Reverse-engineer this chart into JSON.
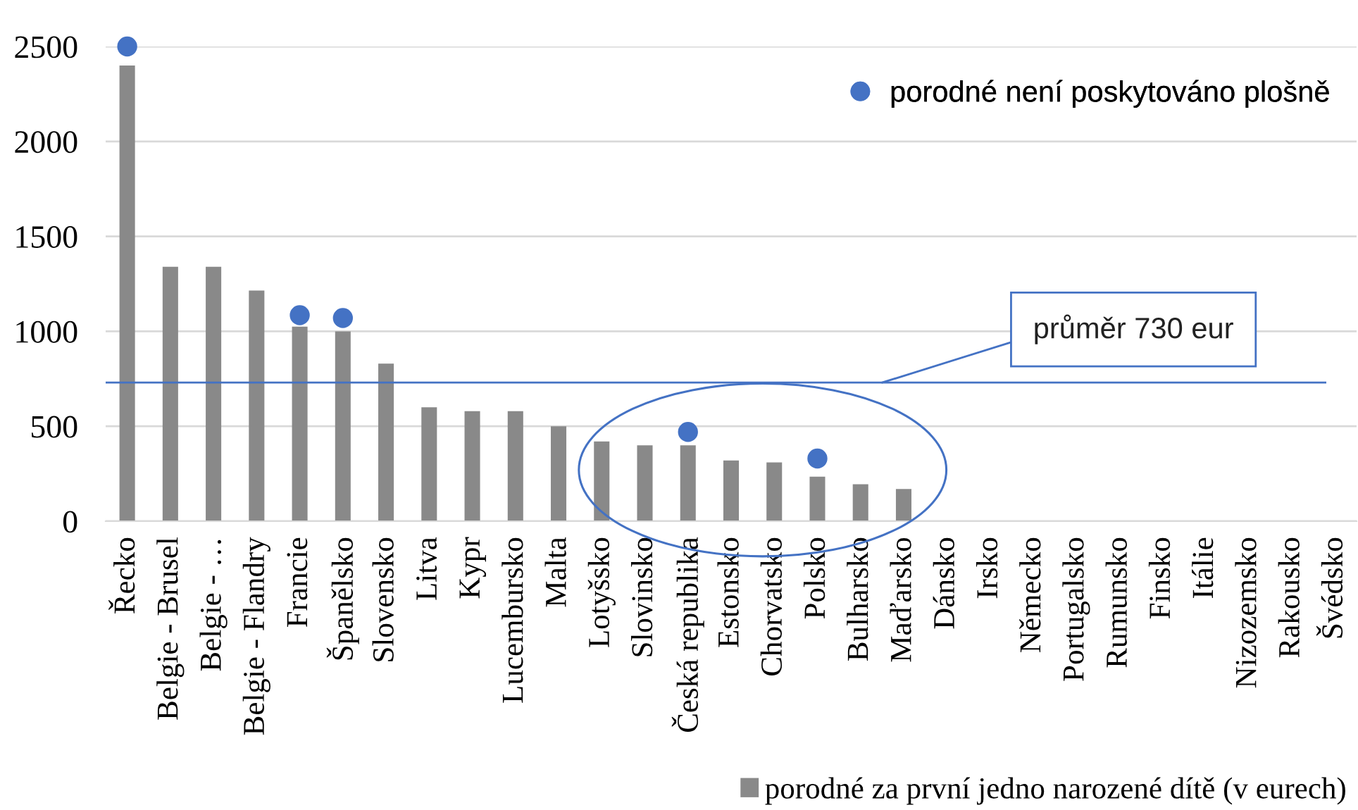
{
  "chart_data": {
    "type": "bar",
    "categories": [
      "Řecko",
      "Belgie - Brusel",
      "Belgie - …",
      "Belgie - Flandry",
      "Francie",
      "Španělsko",
      "Slovensko",
      "Litva",
      "Kypr",
      "Lucembursko",
      "Malta",
      "Lotyšsko",
      "Slovinsko",
      "Česká republika",
      "Estonsko",
      "Chorvatsko",
      "Polsko",
      "Bulharsko",
      "Maďarsko",
      "Dánsko",
      "Irsko",
      "Německo",
      "Portugalsko",
      "Rumunsko",
      "Finsko",
      "Itálie",
      "Nizozemsko",
      "Rakousko",
      "Švédsko"
    ],
    "series": [
      {
        "name": "porodné za první jedno narozené dítě (v eurech)",
        "type": "bar",
        "color": "#898989",
        "values": [
          2400,
          1340,
          1340,
          1215,
          1025,
          1000,
          830,
          600,
          580,
          580,
          500,
          420,
          400,
          400,
          320,
          310,
          235,
          195,
          170,
          null,
          null,
          null,
          null,
          null,
          null,
          null,
          null,
          null,
          null
        ]
      },
      {
        "name": "porodné není poskytováno plošně",
        "type": "scatter",
        "color": "#4472c4",
        "values": [
          2500,
          null,
          null,
          null,
          1085,
          1070,
          null,
          null,
          null,
          null,
          null,
          null,
          null,
          470,
          null,
          null,
          330,
          null,
          null,
          null,
          null,
          null,
          null,
          null,
          null,
          null,
          null,
          null,
          null
        ]
      }
    ],
    "ylim": [
      0,
      2500
    ],
    "yticks": [
      0,
      500,
      1000,
      1500,
      2000,
      2500
    ],
    "grid": "y",
    "legend": "bottom right",
    "marker": "circle",
    "ref_lines": [
      {
        "axis": "y",
        "value": 730,
        "label": "průměr 730 eur",
        "color": "#4472c4"
      }
    ]
  }
}
